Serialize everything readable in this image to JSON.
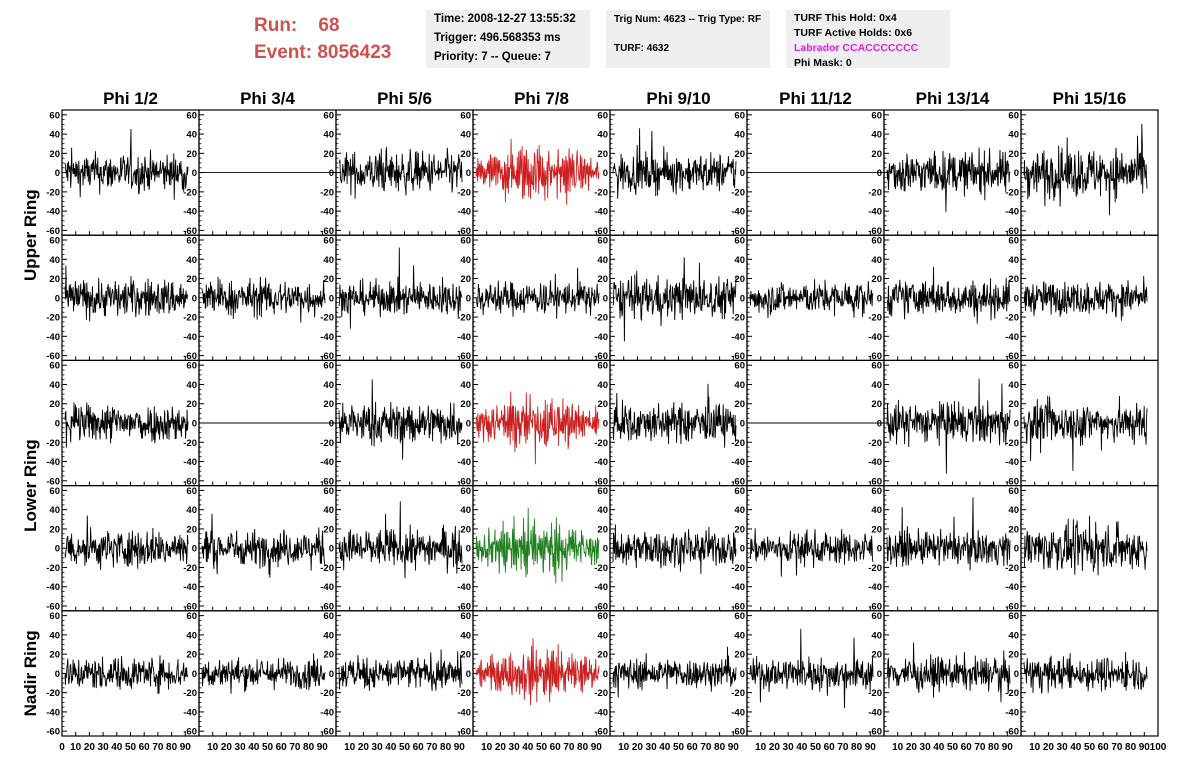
{
  "header": {
    "run_label": "Run:",
    "run_value": "68",
    "event_label": "Event:",
    "event_value": "8056423",
    "time": "Time: 2008-12-27 13:55:32",
    "trigger": "Trigger: 496.568353 ms",
    "priority": "Priority: 7 -- Queue: 7",
    "trig_num": "Trig Num: 4623 -- Trig Type: RF",
    "turf": "TURF: 4632",
    "turf_this_hold": "TURF This Hold: 0x4",
    "turf_active_holds": "TURF Active Holds: 0x6",
    "labrador": "Labrador CCACCCCCCC",
    "phi_mask": "Phi Mask: 0"
  },
  "colors": {
    "run_text": "#d05050",
    "labrador_text": "#e020e0",
    "trace_default": "#000000",
    "trace_highlight_red": "#cc2020",
    "trace_highlight_green": "#208020",
    "info_box_bg": "#efefef"
  },
  "chart_data": {
    "type": "line",
    "grid": false,
    "columns": [
      "Phi 1/2",
      "Phi 3/4",
      "Phi 5/6",
      "Phi 7/8",
      "Phi 9/10",
      "Phi 11/12",
      "Phi 13/14",
      "Phi 15/16"
    ],
    "ring_labels": [
      {
        "label": "Upper Ring",
        "rows": [
          0,
          1
        ]
      },
      {
        "label": "Lower Ring",
        "rows": [
          2,
          3
        ]
      },
      {
        "label": "Nadir Ring",
        "rows": [
          4
        ]
      }
    ],
    "ylim": [
      -65,
      65
    ],
    "xlim": [
      0,
      100
    ],
    "y_ticks": [
      "60",
      "40",
      "20",
      "0",
      "-20",
      "-40",
      "-60"
    ],
    "x_tick_label_groups": [
      [
        "0",
        "10",
        "20",
        "30",
        "40",
        "50",
        "60",
        "70",
        "80",
        "90"
      ],
      [
        "10",
        "20",
        "30",
        "40",
        "50",
        "60",
        "70",
        "80",
        "90"
      ],
      [
        "10",
        "20",
        "30",
        "40",
        "50",
        "60",
        "70",
        "80",
        "90"
      ],
      [
        "10",
        "20",
        "30",
        "40",
        "50",
        "60",
        "70",
        "80",
        "90"
      ],
      [
        "10",
        "20",
        "30",
        "40",
        "50",
        "60",
        "70",
        "80",
        "90"
      ],
      [
        "10",
        "20",
        "30",
        "40",
        "50",
        "60",
        "70",
        "80",
        "90"
      ],
      [
        "10",
        "20",
        "30",
        "40",
        "50",
        "60",
        "70",
        "80",
        "90"
      ],
      [
        "10",
        "20",
        "30",
        "40",
        "50",
        "60",
        "70",
        "80",
        "90",
        "100"
      ]
    ],
    "panels": [
      [
        {
          "c": "k",
          "a": 14
        },
        {
          "c": "flat",
          "a": 0
        },
        {
          "c": "k",
          "a": 15
        },
        {
          "c": "r",
          "a": 17
        },
        {
          "c": "k",
          "a": 14
        },
        {
          "c": "flat",
          "a": 0
        },
        {
          "c": "k",
          "a": 15
        },
        {
          "c": "k",
          "a": 18
        }
      ],
      [
        {
          "c": "k",
          "a": 14
        },
        {
          "c": "k",
          "a": 13
        },
        {
          "c": "k",
          "a": 12
        },
        {
          "c": "k",
          "a": 12
        },
        {
          "c": "k",
          "a": 15
        },
        {
          "c": "k",
          "a": 12
        },
        {
          "c": "k",
          "a": 13
        },
        {
          "c": "k",
          "a": 12
        }
      ],
      [
        {
          "c": "k",
          "a": 14
        },
        {
          "c": "flat",
          "a": 0
        },
        {
          "c": "k",
          "a": 15
        },
        {
          "c": "r",
          "a": 16
        },
        {
          "c": "k",
          "a": 14
        },
        {
          "c": "flat",
          "a": 0
        },
        {
          "c": "k",
          "a": 15
        },
        {
          "c": "k",
          "a": 15
        }
      ],
      [
        {
          "c": "k",
          "a": 14
        },
        {
          "c": "k",
          "a": 13
        },
        {
          "c": "k",
          "a": 14
        },
        {
          "c": "g",
          "a": 18
        },
        {
          "c": "k",
          "a": 13
        },
        {
          "c": "k",
          "a": 12
        },
        {
          "c": "k",
          "a": 12
        },
        {
          "c": "k",
          "a": 16
        }
      ],
      [
        {
          "c": "k",
          "a": 12
        },
        {
          "c": "k",
          "a": 11
        },
        {
          "c": "k",
          "a": 12
        },
        {
          "c": "r",
          "a": 15
        },
        {
          "c": "k",
          "a": 11
        },
        {
          "c": "k",
          "a": 12
        },
        {
          "c": "k",
          "a": 12
        },
        {
          "c": "k",
          "a": 12
        }
      ]
    ]
  }
}
